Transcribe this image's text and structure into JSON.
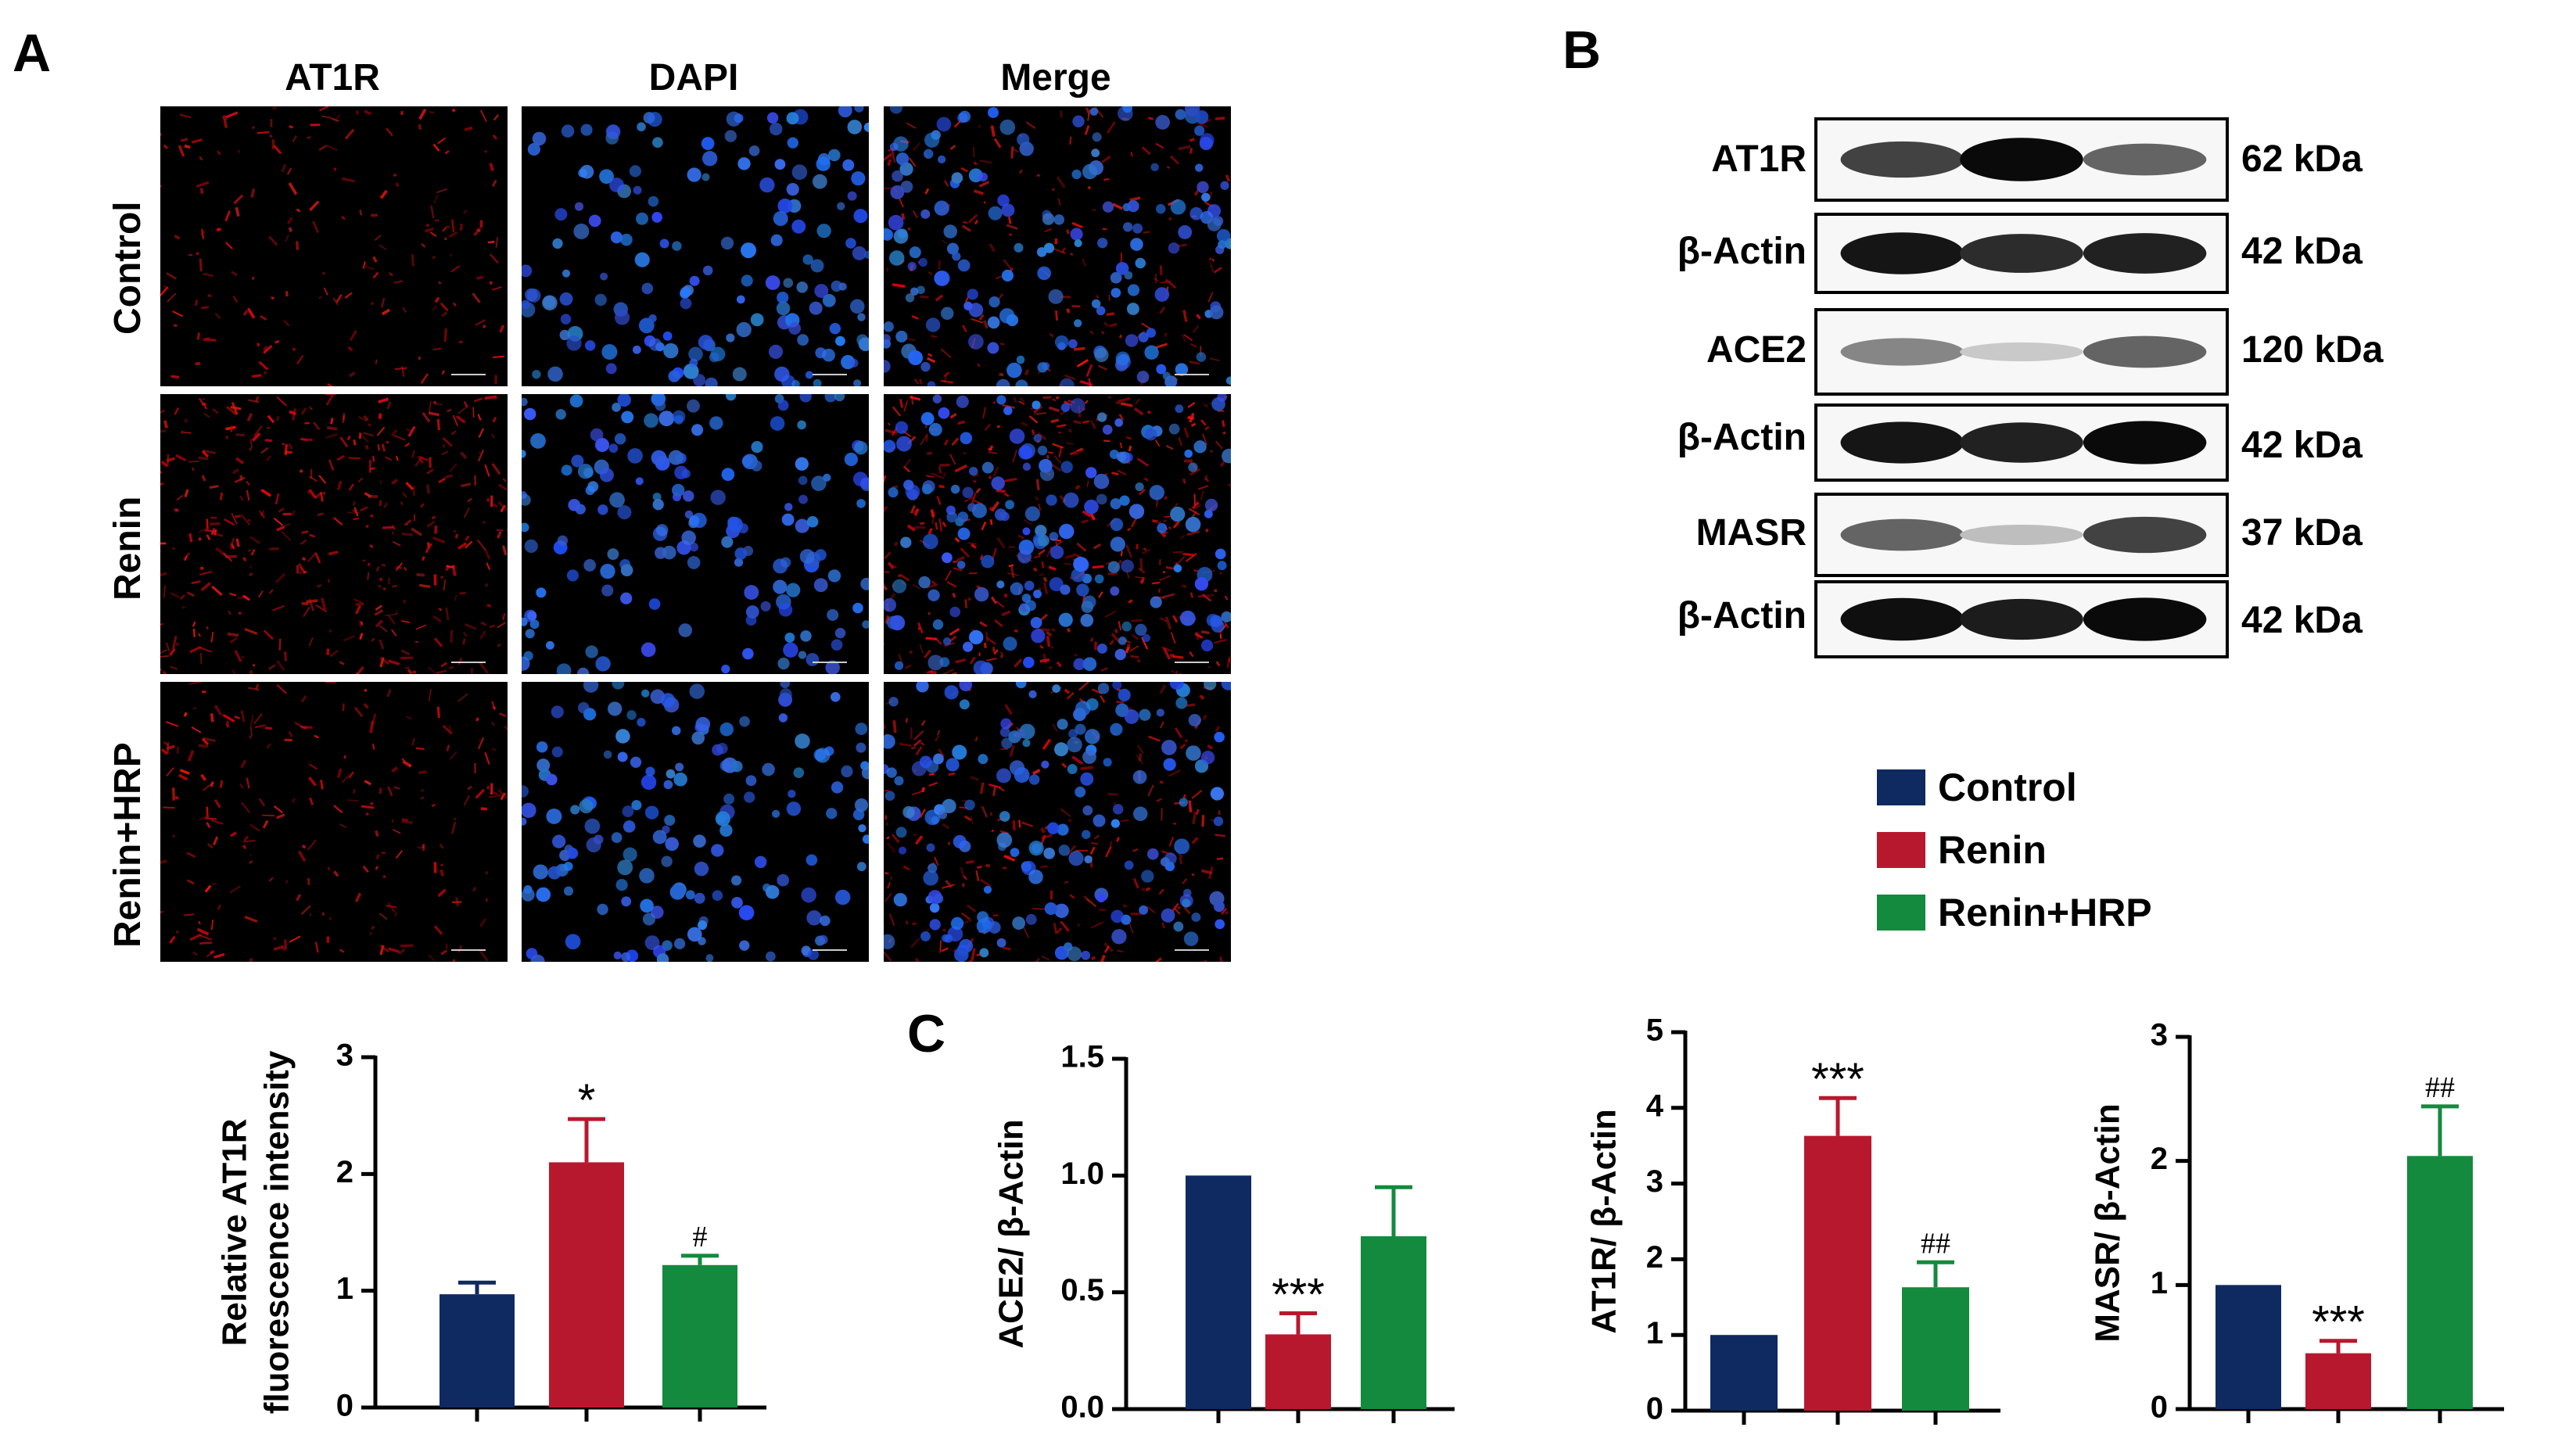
{
  "panels": {
    "a": "A",
    "b": "B",
    "c": "C"
  },
  "panel_a": {
    "columns": [
      "AT1R",
      "DAPI",
      "Merge"
    ],
    "rows": [
      "Control",
      "Renin",
      "Renin+HRP"
    ]
  },
  "panel_b": {
    "blots": [
      {
        "label": "AT1R",
        "kda": "62 kDa"
      },
      {
        "label": "β-Actin",
        "kda": "42 kDa"
      },
      {
        "label": "ACE2",
        "kda": "120 kDa"
      },
      {
        "label": "β-Actin",
        "kda": "42 kDa"
      },
      {
        "label": "MASR",
        "kda": "37 kDa"
      },
      {
        "label": "β-Actin",
        "kda": "42 kDa"
      }
    ]
  },
  "legend": {
    "items": [
      {
        "name": "Control",
        "color": "#0f2a61"
      },
      {
        "name": "Renin",
        "color": "#b8182e"
      },
      {
        "name": "Renin+HRP",
        "color": "#138a3e"
      }
    ]
  },
  "chart_data": [
    {
      "id": "fluor",
      "type": "bar",
      "ylabel": "Relative AT1R fluorescence intensity",
      "ylabel_lines": [
        "Relative AT1R",
        "fluorescence intensity"
      ],
      "yticks": [
        "0",
        "1",
        "2",
        "3"
      ],
      "ylim": [
        0,
        3
      ],
      "series": [
        {
          "name": "Control",
          "value": 0.97,
          "error": 0.1,
          "color": "#0f2a61",
          "sig": ""
        },
        {
          "name": "Renin",
          "value": 2.1,
          "error": 0.37,
          "color": "#b8182e",
          "sig": "*"
        },
        {
          "name": "Renin+HRP",
          "value": 1.22,
          "error": 0.08,
          "color": "#138a3e",
          "sig": "#"
        }
      ]
    },
    {
      "id": "ace2",
      "type": "bar",
      "ylabel": "ACE2/ β-Actin",
      "ylabel_lines": [
        "ACE2/ β-Actin"
      ],
      "yticks": [
        "0.0",
        "0.5",
        "1.0",
        "1.5"
      ],
      "ylim": [
        0,
        1.5
      ],
      "series": [
        {
          "name": "Control",
          "value": 1.0,
          "error": 0,
          "color": "#0f2a61",
          "sig": ""
        },
        {
          "name": "Renin",
          "value": 0.32,
          "error": 0.09,
          "color": "#b8182e",
          "sig": "***"
        },
        {
          "name": "Renin+HRP",
          "value": 0.74,
          "error": 0.21,
          "color": "#138a3e",
          "sig": ""
        }
      ]
    },
    {
      "id": "at1r",
      "type": "bar",
      "ylabel": "AT1R/ β-Actin",
      "ylabel_lines": [
        "AT1R/ β-Actin"
      ],
      "yticks": [
        "0",
        "1",
        "2",
        "3",
        "4",
        "5"
      ],
      "ylim": [
        0,
        5
      ],
      "series": [
        {
          "name": "Control",
          "value": 1.0,
          "error": 0,
          "color": "#0f2a61",
          "sig": ""
        },
        {
          "name": "Renin",
          "value": 3.63,
          "error": 0.5,
          "color": "#b8182e",
          "sig": "***"
        },
        {
          "name": "Renin+HRP",
          "value": 1.63,
          "error": 0.33,
          "color": "#138a3e",
          "sig": "##"
        }
      ]
    },
    {
      "id": "masr",
      "type": "bar",
      "ylabel": "MASR/ β-Actin",
      "ylabel_lines": [
        "MASR/ β-Actin"
      ],
      "yticks": [
        "0",
        "1",
        "2",
        "3"
      ],
      "ylim": [
        0,
        3
      ],
      "series": [
        {
          "name": "Control",
          "value": 1.0,
          "error": 0,
          "color": "#0f2a61",
          "sig": ""
        },
        {
          "name": "Renin",
          "value": 0.45,
          "error": 0.1,
          "color": "#b8182e",
          "sig": "***"
        },
        {
          "name": "Renin+HRP",
          "value": 2.04,
          "error": 0.4,
          "color": "#138a3e",
          "sig": "##"
        }
      ]
    }
  ]
}
